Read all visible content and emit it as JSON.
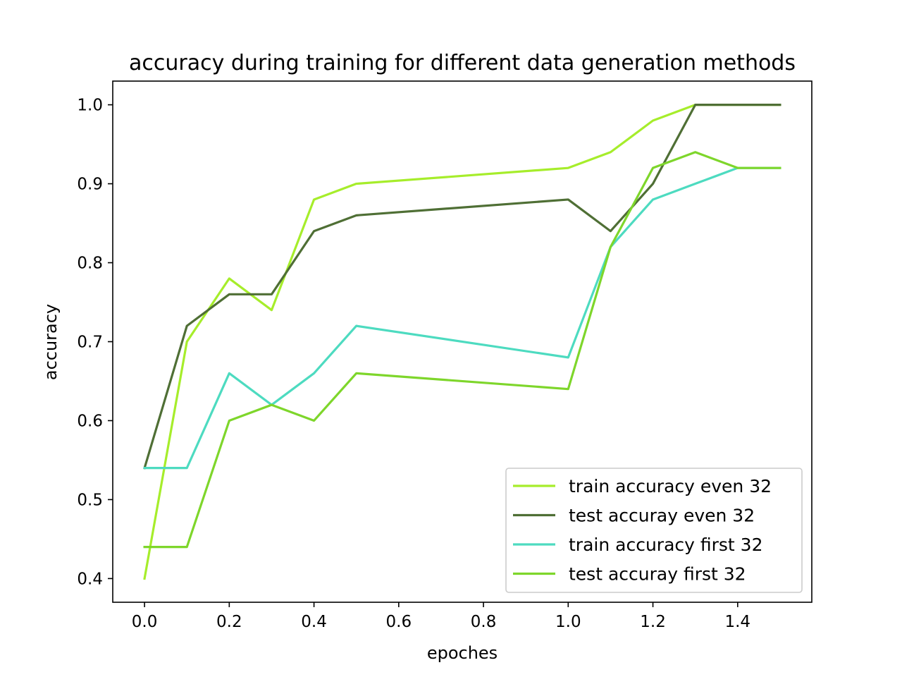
{
  "chart_data": {
    "type": "line",
    "title": "accuracy during training for different data generation methods",
    "xlabel": "epoches",
    "ylabel": "accuracy",
    "xlim": [
      -0.075,
      1.575
    ],
    "ylim": [
      0.37,
      1.03
    ],
    "xticks": [
      0.0,
      0.2,
      0.4,
      0.6,
      0.8,
      1.0,
      1.2,
      1.4
    ],
    "xtick_labels": [
      "0.0",
      "0.2",
      "0.4",
      "0.6",
      "0.8",
      "1.0",
      "1.2",
      "1.4"
    ],
    "yticks": [
      0.4,
      0.5,
      0.6,
      0.7,
      0.8,
      0.9,
      1.0
    ],
    "ytick_labels": [
      "0.4",
      "0.5",
      "0.6",
      "0.7",
      "0.8",
      "0.9",
      "1.0"
    ],
    "grid": false,
    "legend_position": "lower-right",
    "x": [
      0.0,
      0.1,
      0.2,
      0.3,
      0.4,
      0.5,
      1.0,
      1.1,
      1.2,
      1.3,
      1.4,
      1.5
    ],
    "series": [
      {
        "name": "train accuracy even 32",
        "color": "#a6ed2b",
        "values": [
          0.4,
          0.7,
          0.78,
          0.74,
          0.88,
          0.9,
          0.92,
          0.94,
          0.98,
          1.0,
          1.0,
          1.0
        ]
      },
      {
        "name": "test accuray even 32",
        "color": "#4f6f35",
        "values": [
          0.54,
          0.72,
          0.76,
          0.76,
          0.84,
          0.86,
          0.88,
          0.84,
          0.9,
          1.0,
          1.0,
          1.0
        ]
      },
      {
        "name": "train accuracy first 32",
        "color": "#4ddbc0",
        "values": [
          0.54,
          0.54,
          0.66,
          0.62,
          0.66,
          0.72,
          0.68,
          0.82,
          0.88,
          0.9,
          0.92,
          0.92
        ]
      },
      {
        "name": "test accuray first 32",
        "color": "#7ed62b",
        "values": [
          0.44,
          0.44,
          0.6,
          0.62,
          0.6,
          0.66,
          0.64,
          0.82,
          0.92,
          0.94,
          0.92,
          0.92
        ]
      }
    ]
  }
}
